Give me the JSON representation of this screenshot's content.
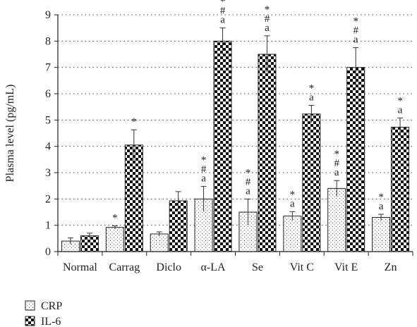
{
  "chart_data": {
    "type": "bar",
    "ylabel": "Plasma level (pg/mL)",
    "xlabel": "",
    "ylim": [
      0,
      9
    ],
    "yticks": [
      "0",
      "1",
      "2",
      "3",
      "4",
      "5",
      "6",
      "7",
      "8",
      "9"
    ],
    "grid": "horizontal dotted",
    "legend_position": "bottom-left",
    "categories": [
      "Normal",
      "Carrag",
      "Diclo",
      "α-LA",
      "Se",
      "Vit C",
      "Vit E",
      "Zn"
    ],
    "series": [
      {
        "name": "CRP",
        "fill": "dotted",
        "values": [
          0.4,
          0.92,
          0.67,
          2.0,
          1.5,
          1.35,
          2.4,
          1.3
        ],
        "errors": [
          0.12,
          0.06,
          0.08,
          0.48,
          0.5,
          0.17,
          0.3,
          0.12
        ],
        "annotations": [
          [],
          [
            "*"
          ],
          [],
          [
            "*",
            "#",
            "a"
          ],
          [
            "*",
            "#",
            "a"
          ],
          [
            "*",
            "a"
          ],
          [
            "*",
            "#",
            "a"
          ],
          [
            "*",
            "a"
          ]
        ]
      },
      {
        "name": "IL-6",
        "fill": "checkered",
        "values": [
          0.6,
          4.05,
          1.93,
          8.0,
          7.5,
          5.23,
          7.0,
          4.73
        ],
        "errors": [
          0.1,
          0.58,
          0.35,
          0.5,
          0.7,
          0.33,
          0.75,
          0.35
        ],
        "annotations": [
          [],
          [
            "*"
          ],
          [],
          [
            "*",
            "#",
            "a"
          ],
          [
            "*",
            "#",
            "a"
          ],
          [
            "*",
            "a"
          ],
          [
            "*",
            "#",
            "a"
          ],
          [
            "*",
            "a"
          ]
        ]
      }
    ]
  }
}
